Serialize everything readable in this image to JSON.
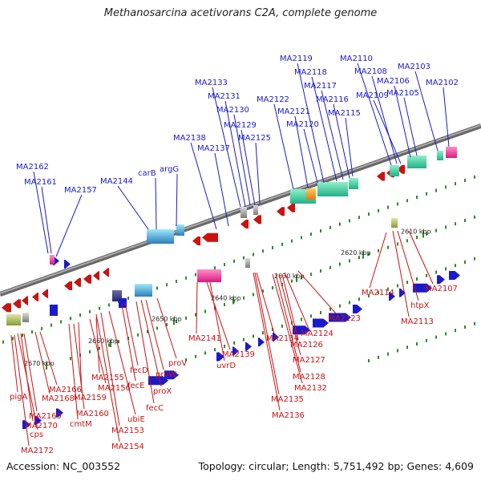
{
  "header": {
    "title": "Methanosarcina acetivorans C2A, complete genome"
  },
  "footer": {
    "accession": "Accession: NC_003552",
    "summary": "Topology: circular; Length: 5,751,492 bp; Genes: 4,609"
  },
  "colors": {
    "forward_gene": "#1a1acc",
    "reverse_gene": "#cc1111",
    "backbone": "#888888",
    "tick": "#2a8a2a"
  },
  "scale_labels": [
    "2610 kbp",
    "2620 kbp",
    "2630 kbp",
    "2640 kbp",
    "2650 kbp",
    "2660 kbp",
    "2670 kbp"
  ],
  "forward_labels": [
    "MA2162",
    "MA2161",
    "MA2157",
    "MA2144",
    "carB",
    "argG",
    "MA2138",
    "MA2137",
    "MA2133",
    "MA2131",
    "MA2130",
    "MA2129",
    "MA2125",
    "MA2122",
    "MA2121",
    "MA2120",
    "MA2119",
    "MA2118",
    "MA2117",
    "MA2116",
    "MA2115",
    "MA2110",
    "MA2108",
    "MA2109",
    "MA2106",
    "MA2105",
    "MA2103",
    "MA2102"
  ],
  "reverse_labels": [
    "MA2114",
    "MA2107",
    "htpX",
    "MA2113",
    "MA2123",
    "MA2124",
    "MA2126",
    "MA2127",
    "MA2128",
    "MA2132",
    "MA2134",
    "MA2135",
    "MA2136",
    "MA2141",
    "MA2139",
    "uvrD",
    "proV",
    "proW",
    "proX",
    "fecC",
    "fecD",
    "fecE",
    "ubiE",
    "MA2155",
    "MA2156",
    "MA2159",
    "MA2160",
    "cmtM",
    "MA2153",
    "MA2154",
    "MA2166",
    "MA2168",
    "pigA",
    "MA2169",
    "MA2170",
    "cps",
    "MA2172"
  ]
}
